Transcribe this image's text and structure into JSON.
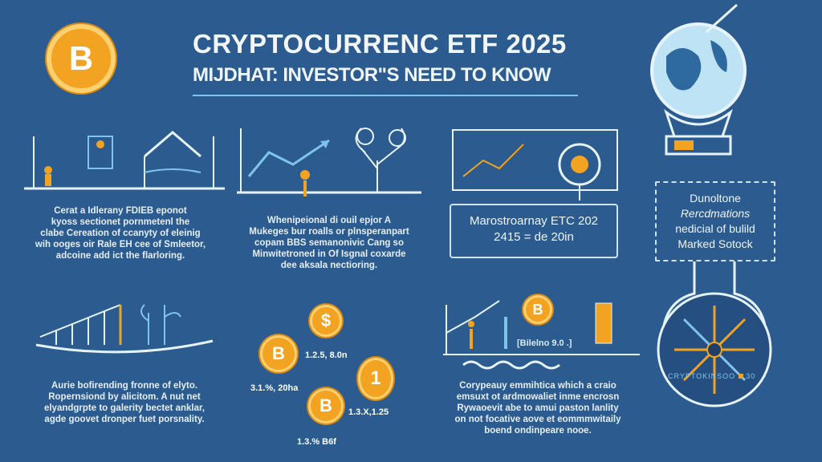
{
  "header": {
    "title": "CRYPTOCURRENC ETF 2025",
    "subtitle": "MIJDHAT: INVESTOR\"S NEED TO KNOW"
  },
  "coins": {
    "bitcoin": "B",
    "dollar": "$",
    "one": "1"
  },
  "panels": {
    "p1_text": [
      "Cerat a Idlerany FDIEB eponot",
      "kyoss sectionet pornmetenl the",
      "clabe Cereation of ccanyty of eleinig",
      "wih ooges oir Rale EH cee of Smleetor,",
      "adcoine add ict the flarloring."
    ],
    "p2_text": [
      "Whenipeional di ouil epjor A",
      "Mukeges bur roalls or plnsperanpart",
      "copam BBS semanonivic Cang so",
      "Minwitetroned in Of Isgnal coxarde",
      "dee aksala nectioring."
    ],
    "p3_box": [
      "Marostroarnay ETC 202",
      "2415 = de 20in"
    ],
    "p4_box": [
      "Dunoltone",
      "Rercdmations",
      "nedicial of bulild",
      "Marked Sotock"
    ],
    "p5_text": [
      "Aurie bofirending fronne of elyto.",
      "Ropernsiond by alicitom. A nut net",
      "elyandgrpte to galerity bectet anklar,",
      "agde goovet dronper fuet porsnality."
    ],
    "coin_labels": [
      "1.2.5, 8.0n",
      "3.1.%, 20ha",
      "1.3.X,1.25",
      "1.3.% B6f"
    ],
    "p7_inner": "[Bilelno 9.0 .]",
    "p7_text": [
      "Corypeauy emmihtica which a craio",
      "emsuxt ot ardmowaliet inme encrosn",
      "Rywaoevit abe to amui paston lanlity",
      "on not focative aove et eommmwitaily",
      "boend ondinpeare nooe."
    ],
    "footer_label": "CRYPTOKINSOO",
    "footer_label2": "30"
  },
  "colors": {
    "background": "#2b5b8f",
    "coin": "#f3a322",
    "accent": "#7fc4ea",
    "line": "#cfe3f3"
  }
}
